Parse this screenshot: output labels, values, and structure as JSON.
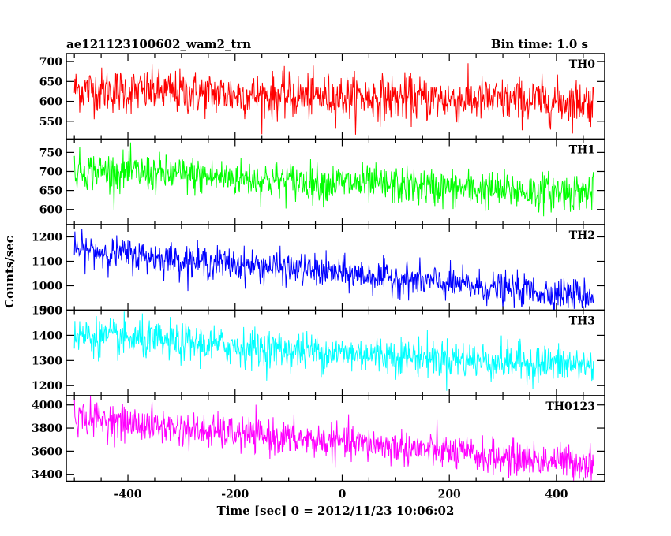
{
  "header": {
    "left_title": "ae121123100602_wam2_trn",
    "right_title": "Bin time: 1.0 s"
  },
  "chart_data": {
    "type": "line",
    "xlabel": "Time [sec] 0 = 2012/11/23 10:06:02",
    "ylabel": "Counts/sec",
    "xlim": [
      -515,
      490
    ],
    "x_ticks": [
      -400,
      -200,
      0,
      200,
      400
    ],
    "x_range_data": [
      -500,
      470
    ],
    "bin_time_s": 1.0,
    "grid": false,
    "panels": [
      {
        "name": "TH0",
        "color": "#ff0000",
        "ylim": [
          505,
          720
        ],
        "y_ticks": [
          550,
          600,
          650,
          700
        ],
        "trend": [
          [
            -500,
            630
          ],
          [
            -300,
            622
          ],
          [
            -100,
            612
          ],
          [
            0,
            612
          ],
          [
            200,
            605
          ],
          [
            470,
            598
          ]
        ],
        "noise_sd": 28
      },
      {
        "name": "TH1",
        "color": "#00ff00",
        "ylim": [
          560,
          785
        ],
        "y_ticks": [
          600,
          650,
          700,
          750
        ],
        "trend": [
          [
            -500,
            705
          ],
          [
            -300,
            690
          ],
          [
            -100,
            675
          ],
          [
            100,
            662
          ],
          [
            300,
            650
          ],
          [
            470,
            645
          ]
        ],
        "noise_sd": 25
      },
      {
        "name": "TH2",
        "color": "#0000ff",
        "ylim": [
          900,
          1250
        ],
        "y_ticks": [
          900,
          1000,
          1100,
          1200
        ],
        "trend": [
          [
            -500,
            1150
          ],
          [
            -300,
            1105
          ],
          [
            -100,
            1070
          ],
          [
            100,
            1030
          ],
          [
            300,
            985
          ],
          [
            470,
            960
          ]
        ],
        "noise_sd": 33
      },
      {
        "name": "TH3",
        "color": "#00ffff",
        "ylim": [
          1160,
          1500
        ],
        "y_ticks": [
          1200,
          1300,
          1400,
          1500
        ],
        "trend": [
          [
            -500,
            1400
          ],
          [
            -300,
            1370
          ],
          [
            -100,
            1340
          ],
          [
            100,
            1320
          ],
          [
            300,
            1295
          ],
          [
            470,
            1280
          ]
        ],
        "noise_sd": 38
      },
      {
        "name": "TH0123",
        "color": "#ff00ff",
        "ylim": [
          3340,
          4080
        ],
        "y_ticks": [
          3400,
          3600,
          3800,
          4000
        ],
        "trend": [
          [
            -500,
            3900
          ],
          [
            -300,
            3790
          ],
          [
            -100,
            3710
          ],
          [
            100,
            3640
          ],
          [
            300,
            3540
          ],
          [
            470,
            3500
          ]
        ],
        "noise_sd": 75
      }
    ]
  }
}
